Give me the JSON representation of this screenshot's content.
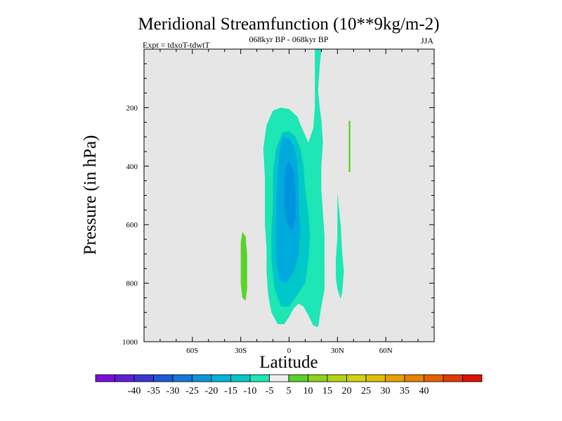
{
  "chart_data": {
    "type": "heatmap",
    "title": "Meridional Streamfunction (10**9kg/m-2)",
    "subtitle_left": "Expt = tdxoT-tdwtT",
    "subtitle_center": "068kyr BP - 068kyr BP",
    "subtitle_right": "JJA",
    "xlabel": "Latitude",
    "ylabel": "Pressure (in hPa)",
    "xlim": [
      -90,
      90
    ],
    "ylim": [
      0,
      1000
    ],
    "x_ticks": [
      {
        "value": -60,
        "label": "60S"
      },
      {
        "value": -30,
        "label": "30S"
      },
      {
        "value": 0,
        "label": "0"
      },
      {
        "value": 30,
        "label": "30N"
      },
      {
        "value": 60,
        "label": "60N"
      }
    ],
    "y_ticks": [
      {
        "value": 200,
        "label": "200"
      },
      {
        "value": 400,
        "label": "400"
      },
      {
        "value": 600,
        "label": "600"
      },
      {
        "value": 800,
        "label": "800"
      },
      {
        "value": 1000,
        "label": "1000"
      }
    ],
    "background_color": "#e6e6e6",
    "contour_regions": [
      {
        "level": "-10 to -5",
        "color": "#1ee6b4",
        "points": [
          [
            16,
            0
          ],
          [
            20,
            0
          ],
          [
            19,
            60
          ],
          [
            18,
            140
          ],
          [
            19,
            200
          ],
          [
            20,
            240
          ],
          [
            21,
            320
          ],
          [
            20,
            400
          ],
          [
            20,
            480
          ],
          [
            21,
            560
          ],
          [
            22,
            640
          ],
          [
            22,
            740
          ],
          [
            22,
            820
          ],
          [
            20,
            880
          ],
          [
            18,
            950
          ],
          [
            15,
            945
          ],
          [
            12,
            910
          ],
          [
            9,
            880
          ],
          [
            6,
            870
          ],
          [
            3,
            885
          ],
          [
            0,
            915
          ],
          [
            -3,
            940
          ],
          [
            -7,
            940
          ],
          [
            -11,
            900
          ],
          [
            -13,
            840
          ],
          [
            -14,
            760
          ],
          [
            -14,
            680
          ],
          [
            -15,
            600
          ],
          [
            -15,
            520
          ],
          [
            -15,
            440
          ],
          [
            -16,
            340
          ],
          [
            -14,
            260
          ],
          [
            -10,
            210
          ],
          [
            -5,
            200
          ],
          [
            0,
            205
          ],
          [
            5,
            230
          ],
          [
            8,
            270
          ],
          [
            12,
            320
          ],
          [
            15,
            270
          ],
          [
            16,
            200
          ],
          [
            16,
            120
          ],
          [
            16,
            60
          ]
        ]
      },
      {
        "level": "-15 to -10",
        "color": "#00c8c8",
        "points": [
          [
            -4,
            285
          ],
          [
            0,
            280
          ],
          [
            4,
            300
          ],
          [
            7,
            340
          ],
          [
            9,
            400
          ],
          [
            10,
            480
          ],
          [
            12,
            560
          ],
          [
            13,
            640
          ],
          [
            12,
            720
          ],
          [
            10,
            800
          ],
          [
            5,
            840
          ],
          [
            0,
            880
          ],
          [
            -5,
            880
          ],
          [
            -9,
            820
          ],
          [
            -11,
            720
          ],
          [
            -11,
            620
          ],
          [
            -10,
            520
          ],
          [
            -10,
            420
          ],
          [
            -8,
            340
          ]
        ]
      },
      {
        "level": "-20 to -15",
        "color": "#00aadc",
        "points": [
          [
            -4,
            300
          ],
          [
            0,
            305
          ],
          [
            3,
            330
          ],
          [
            5,
            380
          ],
          [
            6,
            460
          ],
          [
            6,
            540
          ],
          [
            7,
            620
          ],
          [
            6,
            700
          ],
          [
            3,
            760
          ],
          [
            -2,
            800
          ],
          [
            -6,
            790
          ],
          [
            -8,
            720
          ],
          [
            -8,
            620
          ],
          [
            -8,
            520
          ],
          [
            -7,
            420
          ],
          [
            -6,
            350
          ]
        ]
      },
      {
        "level": "-25 to -20",
        "color": "#0094e0",
        "points": [
          [
            0,
            380
          ],
          [
            3,
            420
          ],
          [
            4,
            500
          ],
          [
            4,
            580
          ],
          [
            2,
            620
          ],
          [
            -1,
            600
          ],
          [
            -3,
            540
          ],
          [
            -3,
            460
          ],
          [
            -2,
            400
          ]
        ]
      },
      {
        "level": "-10 to -5",
        "color": "#1ee6b4",
        "points": [
          [
            30,
            490
          ],
          [
            32,
            600
          ],
          [
            33,
            700
          ],
          [
            34,
            760
          ],
          [
            33,
            830
          ],
          [
            32,
            855
          ],
          [
            30,
            820
          ],
          [
            29,
            780
          ],
          [
            29,
            720
          ],
          [
            30,
            640
          ],
          [
            30,
            560
          ]
        ]
      },
      {
        "level": "5 to 10",
        "color": "#5ad22a",
        "points": [
          [
            -29,
            625
          ],
          [
            -27,
            640
          ],
          [
            -26,
            700
          ],
          [
            -26,
            780
          ],
          [
            -26,
            820
          ],
          [
            -27,
            860
          ],
          [
            -29,
            850
          ],
          [
            -30,
            800
          ],
          [
            -30,
            720
          ],
          [
            -30,
            660
          ]
        ]
      },
      {
        "level": "5 to 10",
        "color": "#5ad22a",
        "points": [
          [
            37,
            245
          ],
          [
            38,
            245
          ],
          [
            38,
            420
          ],
          [
            37,
            420
          ]
        ]
      }
    ],
    "colorbar": {
      "colors": [
        "#7b0fd6",
        "#5e1fd6",
        "#3a34d6",
        "#1e5ad6",
        "#1478d8",
        "#0a98da",
        "#00b4dc",
        "#00c8c8",
        "#1ee6b4",
        "#f0f0f0",
        "#5ad22a",
        "#8cd21e",
        "#b4d216",
        "#d2d20e",
        "#e1be06",
        "#e6a000",
        "#e68200",
        "#e66000",
        "#e23a00",
        "#d81400"
      ],
      "labels": [
        "-40",
        "-35",
        "-30",
        "-25",
        "-20",
        "-15",
        "-10",
        "-5",
        "5",
        "10",
        "15",
        "20",
        "25",
        "30",
        "35",
        "40"
      ]
    }
  }
}
